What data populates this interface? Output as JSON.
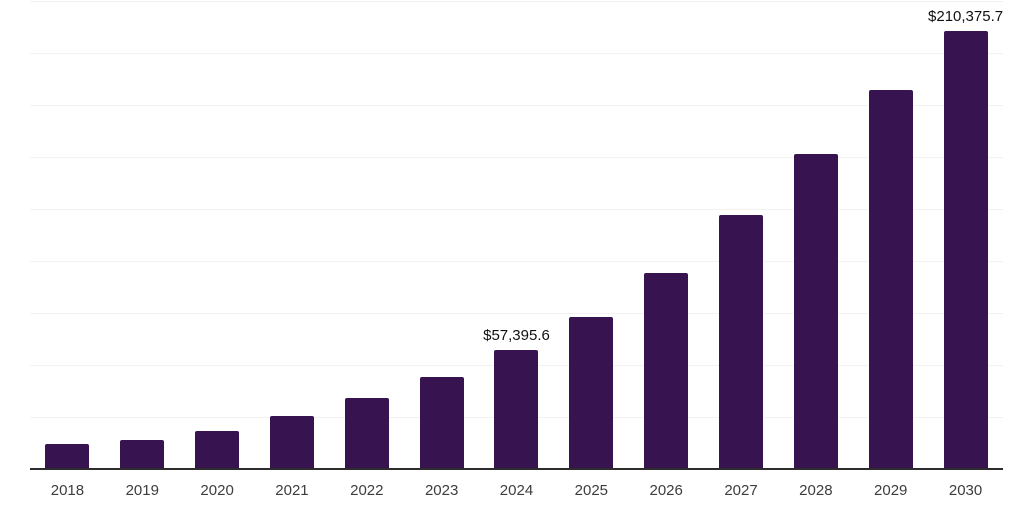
{
  "chart_data": {
    "type": "bar",
    "title": "",
    "xlabel": "",
    "ylabel": "",
    "categories": [
      "2018",
      "2019",
      "2020",
      "2021",
      "2022",
      "2023",
      "2024",
      "2025",
      "2026",
      "2027",
      "2028",
      "2029",
      "2030"
    ],
    "values": [
      12400,
      14350,
      18650,
      25800,
      34400,
      44500,
      57395.6,
      73200,
      94700,
      122400,
      151600,
      182200,
      210375.7
    ],
    "labeled_points": [
      {
        "category": "2024",
        "label": "$57,395.6"
      },
      {
        "category": "2030",
        "label": "$210,375.7"
      }
    ],
    "ylim": [
      0,
      225000
    ],
    "gridline_step": 25000,
    "grid": "horizontal-only",
    "legend": "none",
    "bar_color": "#371450",
    "grid_color": "#f2f2f2",
    "axis_color": "#2d2d2d",
    "tick_label_color": "#3d3d3d",
    "value_label_color": "#111111"
  }
}
